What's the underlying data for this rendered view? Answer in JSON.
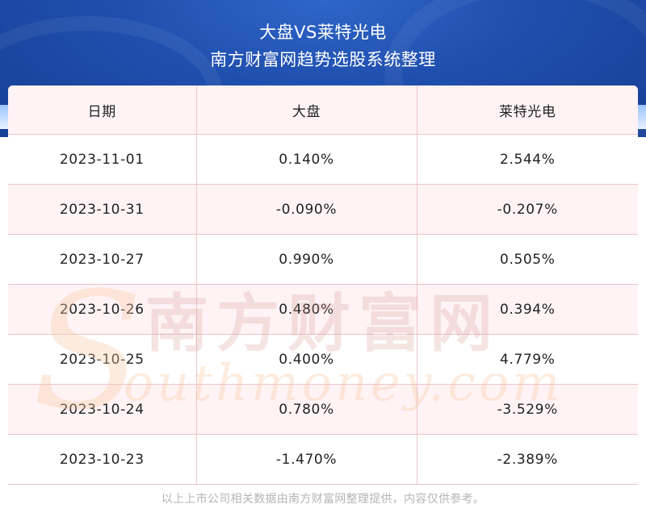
{
  "header": {
    "title": "大盘VS莱特光电",
    "subtitle": "南方财富网趋势选股系统整理"
  },
  "table": {
    "headers": [
      "日期",
      "大盘",
      "莱特光电"
    ],
    "rows": [
      [
        "2023-11-01",
        "0.140%",
        "2.544%"
      ],
      [
        "2023-10-31",
        "-0.090%",
        "-0.207%"
      ],
      [
        "2023-10-27",
        "0.990%",
        "0.505%"
      ],
      [
        "2023-10-26",
        "0.480%",
        "0.394%"
      ],
      [
        "2023-10-25",
        "0.400%",
        "4.779%"
      ],
      [
        "2023-10-24",
        "0.780%",
        "-3.529%"
      ],
      [
        "2023-10-23",
        "-1.470%",
        "-2.389%"
      ]
    ]
  },
  "watermark": {
    "cn": "南方财富网",
    "en": "outhmoney.com",
    "initial": "S"
  },
  "footer": {
    "note": "以上上市公司相关数据由南方财富网整理提供，内容仅供参考。"
  },
  "colors": {
    "header_blue": "#1f4fae",
    "row_pink": "#fff3f5",
    "border_pink": "#efc4cc"
  }
}
